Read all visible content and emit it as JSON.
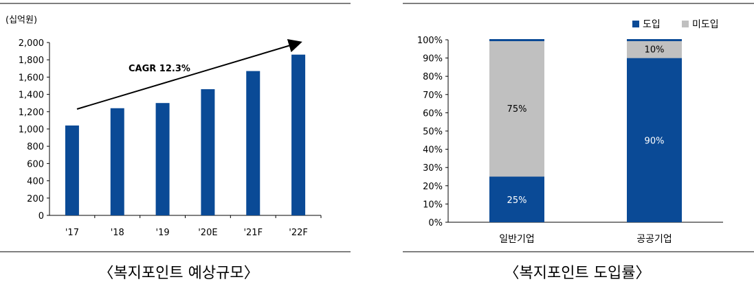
{
  "chart_data": [
    {
      "type": "bar",
      "unit_label": "(십억원)",
      "categories": [
        "'17",
        "'18",
        "'19",
        "'20E",
        "'21F",
        "'22F"
      ],
      "values": [
        1040,
        1240,
        1300,
        1460,
        1670,
        1860
      ],
      "ylim": [
        0,
        2000
      ],
      "yticks": [
        "0",
        "200",
        "400",
        "600",
        "800",
        "1,000",
        "1,200",
        "1,400",
        "1,600",
        "1,800",
        "2,000"
      ],
      "annotation": "CAGR 12.3%",
      "bar_color": "#0a4a96",
      "grid": false,
      "caption": "〈복지포인트 예상규모〉"
    },
    {
      "type": "bar",
      "stacked": true,
      "percent": true,
      "categories": [
        "일반기업",
        "공공기업"
      ],
      "series": [
        {
          "name": "도입",
          "values": [
            25,
            90
          ],
          "labels": [
            "25%",
            "90%"
          ],
          "color": "#0a4a96"
        },
        {
          "name": "미도입",
          "values": [
            75,
            10
          ],
          "labels": [
            "75%",
            "10%"
          ],
          "color": "#c0c0c0"
        }
      ],
      "ylim": [
        0,
        100
      ],
      "yticks": [
        "0%",
        "10%",
        "20%",
        "30%",
        "40%",
        "50%",
        "60%",
        "70%",
        "80%",
        "90%",
        "100%"
      ],
      "legend_position": "top-right",
      "grid": false,
      "caption": "〈복지포인트 도입률〉"
    }
  ]
}
